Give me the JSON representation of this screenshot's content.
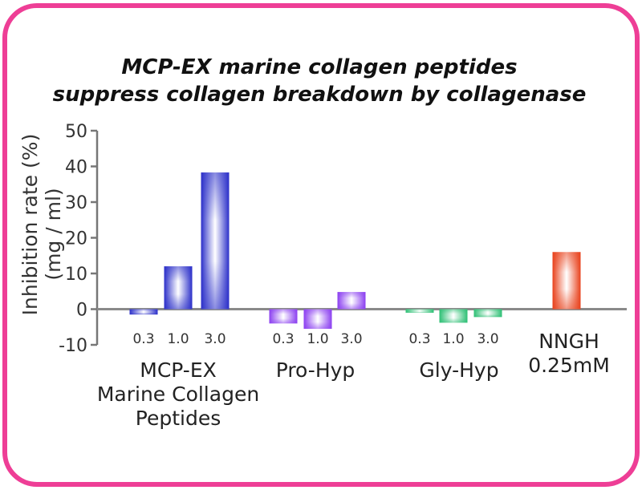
{
  "chart_data": {
    "type": "bar",
    "title": [
      "MCP-EX marine collagen peptides",
      "suppress collagen breakdown by collagenase"
    ],
    "ylabel": [
      "Inhibition rate (%)",
      "(mg / ml)"
    ],
    "ylim": [
      -10,
      50
    ],
    "yticks": [
      "50",
      "40",
      "30",
      "20",
      "10",
      "0",
      "-10"
    ],
    "grid": false,
    "groups": [
      {
        "label": [
          "MCP-EX",
          "Marine Collagen",
          "Peptides"
        ],
        "color": "#2B2FC9",
        "bars": [
          {
            "dose": "0.3",
            "value": -1.5
          },
          {
            "dose": "1.0",
            "value": 12
          },
          {
            "dose": "3.0",
            "value": 38.3
          }
        ]
      },
      {
        "label": [
          "Pro-Hyp"
        ],
        "color": "#8B3FF0",
        "bars": [
          {
            "dose": "0.3",
            "value": -4
          },
          {
            "dose": "1.0",
            "value": -5.5
          },
          {
            "dose": "3.0",
            "value": 4.8
          }
        ]
      },
      {
        "label": [
          "Gly-Hyp"
        ],
        "color": "#2DBF74",
        "bars": [
          {
            "dose": "0.3",
            "value": -1
          },
          {
            "dose": "1.0",
            "value": -3.8
          },
          {
            "dose": "3.0",
            "value": -2.2
          }
        ]
      },
      {
        "label": [
          "NNGH",
          "0.25mM"
        ],
        "color": "#E8401A",
        "bars": [
          {
            "value": 16
          }
        ]
      }
    ]
  },
  "frame_color": "#EE3E96"
}
